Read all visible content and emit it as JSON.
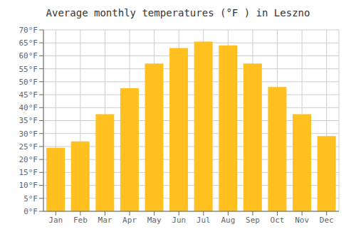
{
  "chart_data": {
    "type": "bar",
    "title": "Average monthly temperatures (°F ) in Leszno",
    "categories": [
      "Jan",
      "Feb",
      "Mar",
      "Apr",
      "May",
      "Jun",
      "Jul",
      "Aug",
      "Sep",
      "Oct",
      "Nov",
      "Dec"
    ],
    "values": [
      24.5,
      27.0,
      37.5,
      47.5,
      57.0,
      63.0,
      65.5,
      64.0,
      57.0,
      48.0,
      37.5,
      29.0
    ],
    "color": "#FFC020",
    "ylim": [
      0,
      70
    ],
    "yticks": [
      {
        "value": 0,
        "label": "0°F"
      },
      {
        "value": 5,
        "label": "5°F"
      },
      {
        "value": 10,
        "label": "10°F"
      },
      {
        "value": 15,
        "label": "15°F"
      },
      {
        "value": 20,
        "label": "20°F"
      },
      {
        "value": 25,
        "label": "25°F"
      },
      {
        "value": 30,
        "label": "30°F"
      },
      {
        "value": 35,
        "label": "35°F"
      },
      {
        "value": 40,
        "label": "40°F"
      },
      {
        "value": 45,
        "label": "45°F"
      },
      {
        "value": 50,
        "label": "50°F"
      },
      {
        "value": 55,
        "label": "55°F"
      },
      {
        "value": 60,
        "label": "60°F"
      },
      {
        "value": 65,
        "label": "65°F"
      },
      {
        "value": 70,
        "label": "70°F"
      }
    ],
    "grid": true
  }
}
